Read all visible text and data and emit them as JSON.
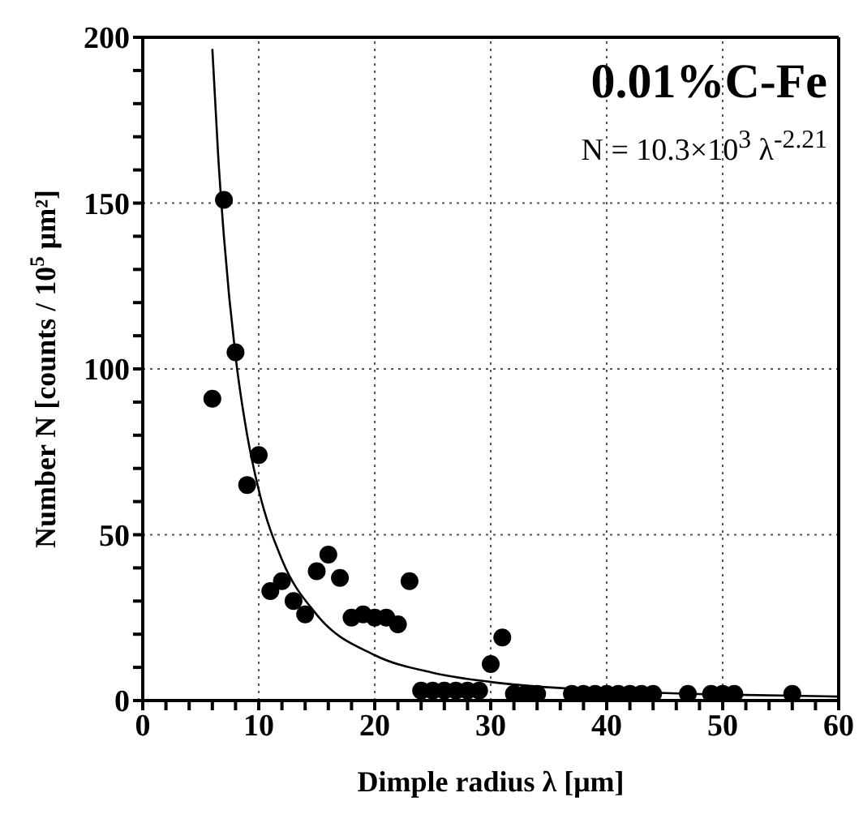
{
  "chart_data": {
    "type": "scatter",
    "xlabel": "Dimple radius  λ [μm]",
    "ylabel": "Number N [counts / 10$^{5}$ μm²]",
    "annotations": [
      "0.01%C-Fe",
      "N = 10.3×10$^{3}$ λ$^{-2.21}$"
    ],
    "xlim": [
      0,
      60
    ],
    "xticks": [
      0,
      {
        "value": 2,
        "label": null
      },
      {
        "value": 4,
        "label": null
      },
      {
        "value": 6,
        "label": null
      },
      {
        "value": 8,
        "label": null
      },
      10,
      {
        "value": 12,
        "label": null
      },
      {
        "value": 14,
        "label": null
      },
      {
        "value": 16,
        "label": null
      },
      {
        "value": 18,
        "label": null
      },
      20,
      {
        "value": 22,
        "label": null
      },
      {
        "value": 24,
        "label": null
      },
      {
        "value": 26,
        "label": null
      },
      {
        "value": 28,
        "label": null
      },
      30,
      {
        "value": 32,
        "label": null
      },
      {
        "value": 34,
        "label": null
      },
      {
        "value": 36,
        "label": null
      },
      {
        "value": 38,
        "label": null
      },
      40,
      {
        "value": 42,
        "label": null
      },
      {
        "value": 44,
        "label": null
      },
      {
        "value": 46,
        "label": null
      },
      {
        "value": 48,
        "label": null
      },
      50,
      {
        "value": 52,
        "label": null
      },
      {
        "value": 54,
        "label": null
      },
      {
        "value": 56,
        "label": null
      },
      {
        "value": 58,
        "label": null
      },
      60
    ],
    "ylim": [
      0,
      200
    ],
    "yticks": [
      0,
      {
        "value": 10,
        "label": null
      },
      {
        "value": 20,
        "label": null
      },
      {
        "value": 30,
        "label": null
      },
      {
        "value": 40,
        "label": null
      },
      50,
      {
        "value": 60,
        "label": null
      },
      {
        "value": 70,
        "label": null
      },
      {
        "value": 80,
        "label": null
      },
      {
        "value": 90,
        "label": null
      },
      100,
      {
        "value": 110,
        "label": null
      },
      {
        "value": 120,
        "label": null
      },
      {
        "value": 130,
        "label": null
      },
      {
        "value": 140,
        "label": null
      },
      150,
      {
        "value": 160,
        "label": null
      },
      {
        "value": 170,
        "label": null
      },
      {
        "value": 180,
        "label": null
      },
      {
        "value": 190,
        "label": null
      },
      200
    ],
    "grid": true,
    "series": [
      {
        "marker": "circle",
        "color": "#000000",
        "x": [
          6,
          7,
          8,
          9,
          10,
          11,
          12,
          13,
          14,
          15,
          16,
          17,
          18,
          19,
          20,
          21,
          22,
          23,
          24,
          25,
          26,
          27,
          28,
          29,
          30,
          31,
          32,
          33,
          34,
          37,
          38,
          39,
          40,
          41,
          42,
          43,
          44,
          47,
          49,
          50,
          51,
          56
        ],
        "values": [
          91,
          151,
          105,
          65,
          74,
          33,
          36,
          30,
          26,
          39,
          44,
          37,
          25,
          26,
          25,
          25,
          23,
          36,
          3,
          3,
          3,
          3,
          3,
          3,
          11,
          19,
          2,
          2,
          2,
          2,
          2,
          2,
          2,
          2,
          2,
          2,
          2,
          2,
          2,
          2,
          2,
          2
        ]
      },
      {
        "type": "line",
        "marker": "none",
        "line_style": "solid",
        "color": "#000000",
        "x": [
          6,
          6.5,
          7,
          8,
          9,
          10,
          12,
          15,
          20,
          25,
          30,
          40,
          50,
          60
        ],
        "values": [
          196.5,
          164.5,
          139.8,
          103.9,
          80.1,
          63.5,
          42.5,
          25.9,
          13.7,
          8.4,
          5.6,
          3.0,
          1.8,
          1.2
        ]
      }
    ]
  }
}
